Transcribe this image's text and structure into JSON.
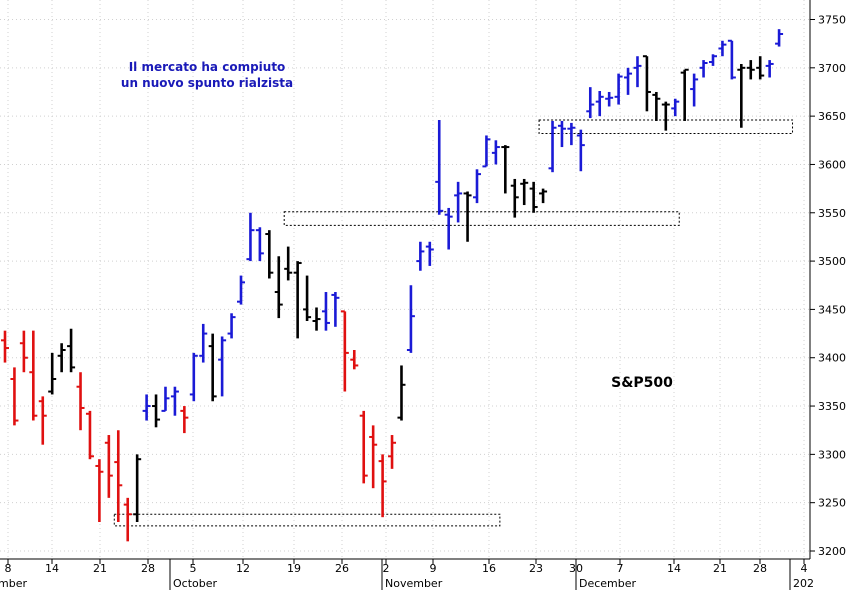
{
  "chart_data": {
    "type": "ohlc-bar",
    "symbol": "S&P500",
    "annotation": [
      "Il mercato ha compiuto",
      "un nuovo spunto rialzista"
    ],
    "ylim": [
      3200,
      3770
    ],
    "y_ticks": [
      3200,
      3250,
      3300,
      3350,
      3400,
      3450,
      3500,
      3550,
      3600,
      3650,
      3700,
      3750
    ],
    "x_day_ticks": [
      "8",
      "14",
      "21",
      "28",
      "5",
      "12",
      "19",
      "26",
      "2",
      "9",
      "16",
      "23",
      "30",
      "7",
      "14",
      "21",
      "28",
      "4"
    ],
    "month_labels": [
      "mber",
      "October",
      "November",
      "December",
      "202"
    ],
    "grid": true,
    "colors": {
      "up": "#1a1ad6",
      "down": "#e01010",
      "neutral": "#000000",
      "box": "#000000"
    },
    "support_boxes": [
      {
        "from": 12,
        "to": 52,
        "low": 3226,
        "high": 3238
      },
      {
        "from": 30,
        "to": 71,
        "low": 3537,
        "high": 3551
      },
      {
        "from": 57,
        "to": 83,
        "low": 3632,
        "high": 3646
      }
    ],
    "bars": [
      {
        "o": 3418,
        "h": 3428,
        "l": 3395,
        "c": 3410,
        "t": "d"
      },
      {
        "o": 3378,
        "h": 3390,
        "l": 3330,
        "c": 3335,
        "t": "d"
      },
      {
        "o": 3415,
        "h": 3428,
        "l": 3385,
        "c": 3400,
        "t": "d"
      },
      {
        "o": 3385,
        "h": 3428,
        "l": 3335,
        "c": 3340,
        "t": "d"
      },
      {
        "o": 3355,
        "h": 3360,
        "l": 3310,
        "c": 3340,
        "t": "d"
      },
      {
        "o": 3365,
        "h": 3405,
        "l": 3362,
        "c": 3378,
        "t": "n"
      },
      {
        "o": 3402,
        "h": 3415,
        "l": 3385,
        "c": 3408,
        "t": "n"
      },
      {
        "o": 3412,
        "h": 3430,
        "l": 3385,
        "c": 3390,
        "t": "n"
      },
      {
        "o": 3370,
        "h": 3385,
        "l": 3325,
        "c": 3348,
        "t": "d"
      },
      {
        "o": 3342,
        "h": 3345,
        "l": 3295,
        "c": 3298,
        "t": "d"
      },
      {
        "o": 3288,
        "h": 3295,
        "l": 3230,
        "c": 3282,
        "t": "d"
      },
      {
        "o": 3312,
        "h": 3320,
        "l": 3255,
        "c": 3278,
        "t": "d"
      },
      {
        "o": 3292,
        "h": 3325,
        "l": 3230,
        "c": 3268,
        "t": "d"
      },
      {
        "o": 3248,
        "h": 3255,
        "l": 3210,
        "c": 3238,
        "t": "d"
      },
      {
        "o": 3238,
        "h": 3300,
        "l": 3230,
        "c": 3295,
        "t": "n"
      },
      {
        "o": 3345,
        "h": 3362,
        "l": 3335,
        "c": 3350,
        "t": "u"
      },
      {
        "o": 3350,
        "h": 3362,
        "l": 3328,
        "c": 3336,
        "t": "n"
      },
      {
        "o": 3345,
        "h": 3370,
        "l": 3345,
        "c": 3358,
        "t": "u"
      },
      {
        "o": 3360,
        "h": 3370,
        "l": 3340,
        "c": 3365,
        "t": "u"
      },
      {
        "o": 3345,
        "h": 3350,
        "l": 3322,
        "c": 3338,
        "t": "d"
      },
      {
        "o": 3362,
        "h": 3405,
        "l": 3355,
        "c": 3402,
        "t": "u"
      },
      {
        "o": 3402,
        "h": 3435,
        "l": 3395,
        "c": 3425,
        "t": "u"
      },
      {
        "o": 3412,
        "h": 3425,
        "l": 3355,
        "c": 3360,
        "t": "n"
      },
      {
        "o": 3398,
        "h": 3422,
        "l": 3360,
        "c": 3418,
        "t": "u"
      },
      {
        "o": 3425,
        "h": 3446,
        "l": 3420,
        "c": 3442,
        "t": "u"
      },
      {
        "o": 3458,
        "h": 3485,
        "l": 3455,
        "c": 3478,
        "t": "u"
      },
      {
        "o": 3502,
        "h": 3550,
        "l": 3500,
        "c": 3532,
        "t": "u"
      },
      {
        "o": 3532,
        "h": 3535,
        "l": 3500,
        "c": 3508,
        "t": "u"
      },
      {
        "o": 3528,
        "h": 3532,
        "l": 3482,
        "c": 3488,
        "t": "n"
      },
      {
        "o": 3468,
        "h": 3505,
        "l": 3441,
        "c": 3455,
        "t": "n"
      },
      {
        "o": 3492,
        "h": 3515,
        "l": 3480,
        "c": 3488,
        "t": "n"
      },
      {
        "o": 3488,
        "h": 3500,
        "l": 3420,
        "c": 3498,
        "t": "n"
      },
      {
        "o": 3450,
        "h": 3485,
        "l": 3438,
        "c": 3442,
        "t": "n"
      },
      {
        "o": 3438,
        "h": 3452,
        "l": 3428,
        "c": 3440,
        "t": "n"
      },
      {
        "o": 3448,
        "h": 3468,
        "l": 3428,
        "c": 3436,
        "t": "u"
      },
      {
        "o": 3465,
        "h": 3468,
        "l": 3432,
        "c": 3462,
        "t": "u"
      },
      {
        "o": 3448,
        "h": 3448,
        "l": 3365,
        "c": 3405,
        "t": "d"
      },
      {
        "o": 3398,
        "h": 3408,
        "l": 3388,
        "c": 3392,
        "t": "d"
      },
      {
        "o": 3340,
        "h": 3345,
        "l": 3270,
        "c": 3278,
        "t": "d"
      },
      {
        "o": 3318,
        "h": 3330,
        "l": 3265,
        "c": 3310,
        "t": "d"
      },
      {
        "o": 3293,
        "h": 3300,
        "l": 3235,
        "c": 3272,
        "t": "d"
      },
      {
        "o": 3298,
        "h": 3320,
        "l": 3285,
        "c": 3312,
        "t": "d"
      },
      {
        "o": 3338,
        "h": 3392,
        "l": 3335,
        "c": 3372,
        "t": "n"
      },
      {
        "o": 3408,
        "h": 3475,
        "l": 3405,
        "c": 3443,
        "t": "u"
      },
      {
        "o": 3500,
        "h": 3520,
        "l": 3490,
        "c": 3510,
        "t": "u"
      },
      {
        "o": 3515,
        "h": 3520,
        "l": 3495,
        "c": 3512,
        "t": "u"
      },
      {
        "o": 3582,
        "h": 3646,
        "l": 3548,
        "c": 3552,
        "t": "u"
      },
      {
        "o": 3548,
        "h": 3555,
        "l": 3512,
        "c": 3546,
        "t": "u"
      },
      {
        "o": 3568,
        "h": 3582,
        "l": 3540,
        "c": 3570,
        "t": "u"
      },
      {
        "o": 3570,
        "h": 3572,
        "l": 3520,
        "c": 3568,
        "t": "n"
      },
      {
        "o": 3566,
        "h": 3595,
        "l": 3560,
        "c": 3590,
        "t": "u"
      },
      {
        "o": 3598,
        "h": 3630,
        "l": 3598,
        "c": 3626,
        "t": "u"
      },
      {
        "o": 3612,
        "h": 3625,
        "l": 3600,
        "c": 3618,
        "t": "u"
      },
      {
        "o": 3618,
        "h": 3620,
        "l": 3570,
        "c": 3618,
        "t": "n"
      },
      {
        "o": 3578,
        "h": 3585,
        "l": 3545,
        "c": 3566,
        "t": "n"
      },
      {
        "o": 3580,
        "h": 3585,
        "l": 3558,
        "c": 3581,
        "t": "n"
      },
      {
        "o": 3575,
        "h": 3582,
        "l": 3550,
        "c": 3556,
        "t": "n"
      },
      {
        "o": 3570,
        "h": 3575,
        "l": 3560,
        "c": 3572,
        "t": "n"
      },
      {
        "o": 3596,
        "h": 3645,
        "l": 3592,
        "c": 3638,
        "t": "u"
      },
      {
        "o": 3640,
        "h": 3645,
        "l": 3618,
        "c": 3637,
        "t": "u"
      },
      {
        "o": 3637,
        "h": 3643,
        "l": 3620,
        "c": 3638,
        "t": "u"
      },
      {
        "o": 3630,
        "h": 3636,
        "l": 3593,
        "c": 3620,
        "t": "u"
      },
      {
        "o": 3655,
        "h": 3680,
        "l": 3648,
        "c": 3662,
        "t": "u"
      },
      {
        "o": 3665,
        "h": 3676,
        "l": 3650,
        "c": 3670,
        "t": "u"
      },
      {
        "o": 3668,
        "h": 3675,
        "l": 3660,
        "c": 3669,
        "t": "u"
      },
      {
        "o": 3670,
        "h": 3694,
        "l": 3662,
        "c": 3691,
        "t": "u"
      },
      {
        "o": 3690,
        "h": 3700,
        "l": 3672,
        "c": 3694,
        "t": "u"
      },
      {
        "o": 3700,
        "h": 3712,
        "l": 3680,
        "c": 3702,
        "t": "u"
      },
      {
        "o": 3712,
        "h": 3712,
        "l": 3655,
        "c": 3675,
        "t": "n"
      },
      {
        "o": 3672,
        "h": 3675,
        "l": 3645,
        "c": 3668,
        "t": "n"
      },
      {
        "o": 3662,
        "h": 3665,
        "l": 3635,
        "c": 3662,
        "t": "n"
      },
      {
        "o": 3658,
        "h": 3668,
        "l": 3650,
        "c": 3665,
        "t": "u"
      },
      {
        "o": 3695,
        "h": 3698,
        "l": 3645,
        "c": 3698,
        "t": "n"
      },
      {
        "o": 3678,
        "h": 3694,
        "l": 3660,
        "c": 3688,
        "t": "u"
      },
      {
        "o": 3700,
        "h": 3708,
        "l": 3690,
        "c": 3705,
        "t": "u"
      },
      {
        "o": 3706,
        "h": 3714,
        "l": 3702,
        "c": 3712,
        "t": "u"
      },
      {
        "o": 3720,
        "h": 3728,
        "l": 3712,
        "c": 3724,
        "t": "u"
      },
      {
        "o": 3728,
        "h": 3728,
        "l": 3688,
        "c": 3690,
        "t": "u"
      },
      {
        "o": 3698,
        "h": 3704,
        "l": 3638,
        "c": 3700,
        "t": "n"
      },
      {
        "o": 3700,
        "h": 3708,
        "l": 3688,
        "c": 3698,
        "t": "n"
      },
      {
        "o": 3700,
        "h": 3712,
        "l": 3688,
        "c": 3692,
        "t": "n"
      },
      {
        "o": 3702,
        "h": 3708,
        "l": 3690,
        "c": 3704,
        "t": "u"
      },
      {
        "o": 3725,
        "h": 3740,
        "l": 3722,
        "c": 3735,
        "t": "u"
      }
    ]
  }
}
